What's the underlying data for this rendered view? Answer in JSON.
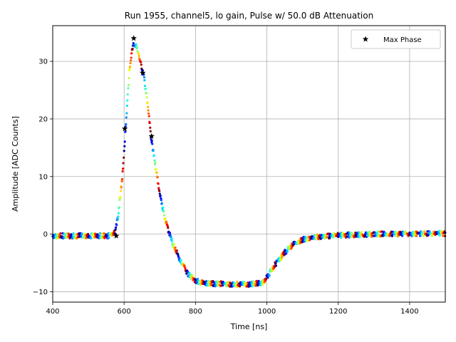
{
  "chart_data": {
    "type": "scatter",
    "title": "Run 1955, channel5, lo gain, Pulse w/ 50.0 dB Attenuation",
    "xlabel": "Time [ns]",
    "ylabel": "Amplitude [ADC Counts]",
    "xlim": [
      400,
      1500
    ],
    "ylim": [
      -11.8,
      36.2
    ],
    "xticks": [
      400,
      600,
      800,
      1000,
      1200,
      1400
    ],
    "yticks": [
      -10,
      0,
      10,
      20,
      30
    ],
    "grid": true,
    "legend": {
      "location": "upper-right",
      "entries": [
        "Max Phase"
      ]
    },
    "colormap": "jet",
    "pulse_shape": {
      "x": [
        400,
        560,
        575,
        585,
        595,
        605,
        615,
        625,
        635,
        645,
        655,
        665,
        675,
        685,
        695,
        705,
        715,
        725,
        735,
        750,
        765,
        780,
        800,
        820,
        850,
        900,
        950,
        990,
        1000,
        1010,
        1020,
        1040,
        1060,
        1080,
        1100,
        1120,
        1150,
        1200,
        1300,
        1500
      ],
      "y": [
        -0.3,
        -0.3,
        0.5,
        4,
        10,
        19,
        28.5,
        33,
        32.5,
        30,
        27.5,
        23,
        17,
        13,
        9,
        5.5,
        2.5,
        0.5,
        -1.5,
        -3.5,
        -5.5,
        -7,
        -8,
        -8.5,
        -8.6,
        -8.7,
        -8.7,
        -8.4,
        -7.5,
        -6.5,
        -5.5,
        -4,
        -2.5,
        -1.5,
        -1,
        -0.6,
        -0.4,
        -0.2,
        0,
        0.1
      ]
    },
    "max_phase": {
      "name": "Max Phase",
      "x": [
        578,
        602,
        627,
        652,
        677
      ],
      "y": [
        -0.3,
        18.3,
        34,
        28,
        17
      ]
    }
  }
}
